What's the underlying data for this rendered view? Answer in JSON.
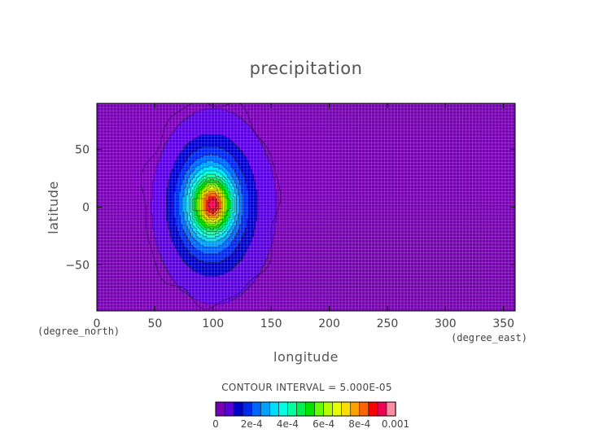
{
  "chart_data": {
    "type": "heatmap",
    "title": "precipitation",
    "xlabel": "longitude",
    "ylabel": "latitude",
    "x_units": "(degree_east)",
    "y_units": "(degree_north)",
    "xlim": [
      0,
      360
    ],
    "ylim": [
      -90,
      90
    ],
    "x_ticks": [
      0,
      50,
      100,
      150,
      200,
      250,
      300,
      350
    ],
    "x_tick_labels": [
      "0",
      "50",
      "100",
      "150",
      "200",
      "250",
      "300",
      "350"
    ],
    "y_ticks": [
      -50,
      0,
      50
    ],
    "y_tick_labels": [
      "−50",
      "0",
      "50"
    ],
    "grid": true,
    "contour_interval_text": "CONTOUR INTERVAL = 5.000E-05",
    "contour_interval": 5e-05,
    "levels": [
      0,
      5e-05,
      0.0001,
      0.00015,
      0.0002,
      0.00025,
      0.0003,
      0.00035,
      0.0004,
      0.00045,
      0.0005,
      0.00055,
      0.0006,
      0.00065,
      0.0007,
      0.00075,
      0.0008,
      0.00085,
      0.0009,
      0.00095,
      0.001
    ],
    "level_colors": [
      "#7800b4",
      "#5a00dc",
      "#0000c8",
      "#0028f0",
      "#0064ff",
      "#00a0ff",
      "#00dcff",
      "#00ffe6",
      "#00ffa0",
      "#00f050",
      "#00e100",
      "#64ff00",
      "#b4ff00",
      "#e6ff00",
      "#ffdc00",
      "#ffa000",
      "#ff6400",
      "#ff0000",
      "#f00050",
      "#ff8ca0"
    ],
    "colorbar_tick_values": [
      0,
      0.0002,
      0.0004,
      0.0006,
      0.0008,
      0.001
    ],
    "colorbar_tick_labels": [
      "0",
      "2e-4",
      "4e-4",
      "6e-4",
      "8e-4",
      "0.001"
    ],
    "features": {
      "background_level": 2e-05,
      "peak": {
        "lon": 100,
        "lat": 2,
        "value": 0.00092
      },
      "extent": {
        "lon_min": 55,
        "lon_max": 135,
        "lat_min": -60,
        "lat_max": 62
      }
    }
  }
}
